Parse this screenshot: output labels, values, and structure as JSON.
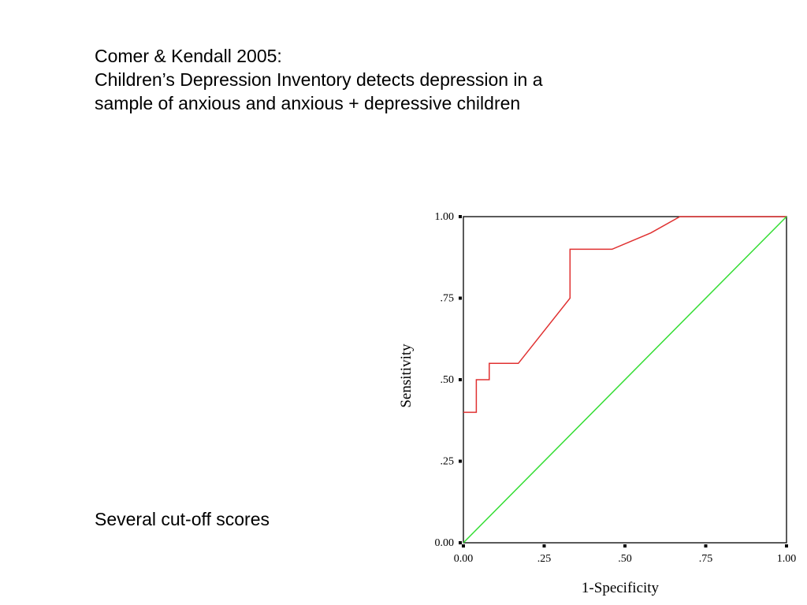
{
  "slide": {
    "title_lines": [
      "Comer & Kendall 2005:",
      "Children’s Depression Inventory detects depression in a",
      "sample of  anxious and anxious + depressive children"
    ],
    "note": "Several cut-off scores"
  },
  "chart_data": {
    "type": "line",
    "title": "",
    "xlabel": "1-Specificity",
    "ylabel": "Sensitivity",
    "xlim": [
      0,
      1
    ],
    "ylim": [
      0,
      1
    ],
    "x_ticks": [
      0,
      0.25,
      0.5,
      0.75,
      1
    ],
    "x_tick_labels": [
      "0.00",
      ".25",
      ".50",
      ".75",
      "1.00"
    ],
    "y_ticks": [
      0,
      0.25,
      0.5,
      0.75,
      1
    ],
    "y_tick_labels": [
      "0.00",
      ".25",
      ".50",
      ".75",
      "1.00"
    ],
    "grid": false,
    "series": [
      {
        "color": "#e03030",
        "x": [
          0.0,
          0.04,
          0.04,
          0.08,
          0.08,
          0.17,
          0.33,
          0.33,
          0.46,
          0.58,
          0.67,
          1.0
        ],
        "y": [
          0.4,
          0.4,
          0.5,
          0.5,
          0.55,
          0.55,
          0.75,
          0.9,
          0.9,
          0.95,
          1.0,
          1.0
        ]
      },
      {
        "color": "#33dd33",
        "x": [
          0,
          1
        ],
        "y": [
          0,
          1
        ]
      }
    ]
  }
}
